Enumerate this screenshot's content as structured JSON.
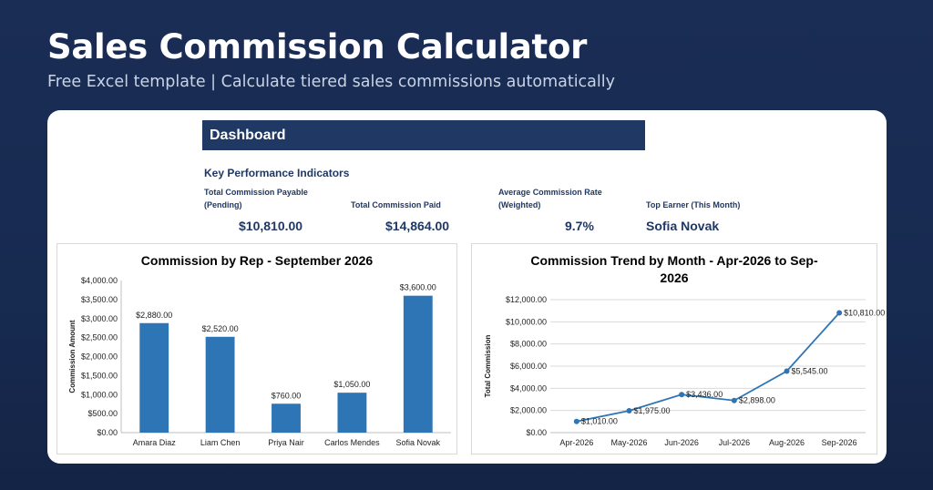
{
  "hero": {
    "title": "Sales Commission Calculator",
    "subtitle": "Free Excel template  |  Calculate tiered sales commissions automatically"
  },
  "dashboard": {
    "header": "Dashboard",
    "kpi_heading": "Key Performance Indicators",
    "kpis": [
      {
        "label_line1": "Total Commission Payable",
        "label_line2": "(Pending)",
        "value": "$10,810.00"
      },
      {
        "label_line1": "Total Commission Paid",
        "label_line2": "",
        "value": "$14,864.00"
      },
      {
        "label_line1": "Average Commission Rate",
        "label_line2": "(Weighted)",
        "value": "9.7%"
      },
      {
        "label_line1": "Top Earner (This Month)",
        "label_line2": "",
        "value": "Sofia Novak"
      }
    ]
  },
  "chart_data": [
    {
      "type": "bar",
      "title": "Commission by Rep - September 2026",
      "ylabel": "Commission Amount",
      "xlabel": "",
      "categories": [
        "Amara Diaz",
        "Liam Chen",
        "Priya Nair",
        "Carlos Mendes",
        "Sofia Novak"
      ],
      "values": [
        2880,
        2520,
        760,
        1050,
        3600
      ],
      "data_labels": [
        "$2,880.00",
        "$2,520.00",
        "$760.00",
        "$1,050.00",
        "$3,600.00"
      ],
      "ylim": [
        0,
        4000
      ],
      "yticks": [
        0,
        500,
        1000,
        1500,
        2000,
        2500,
        3000,
        3500,
        4000
      ],
      "ytick_labels": [
        "$0.00",
        "$500.00",
        "$1,000.00",
        "$1,500.00",
        "$2,000.00",
        "$2,500.00",
        "$3,000.00",
        "$3,500.00",
        "$4,000.00"
      ],
      "color": "#2e75b6",
      "grid": false
    },
    {
      "type": "line",
      "title_line1": "Commission Trend by Month - Apr-2026 to Sep-",
      "title_line2": "2026",
      "ylabel": "Total Commission",
      "xlabel": "",
      "categories": [
        "Apr-2026",
        "May-2026",
        "Jun-2026",
        "Jul-2026",
        "Aug-2026",
        "Sep-2026"
      ],
      "values": [
        1010,
        1975,
        3436,
        2898,
        5545,
        10810
      ],
      "data_labels": [
        "$1,010.00",
        "$1,975.00",
        "$3,436.00",
        "$2,898.00",
        "$5,545.00",
        "$10,810.00"
      ],
      "ylim": [
        0,
        12000
      ],
      "yticks": [
        0,
        2000,
        4000,
        6000,
        8000,
        10000,
        12000
      ],
      "ytick_labels": [
        "$0.00",
        "$2,000.00",
        "$4,000.00",
        "$6,000.00",
        "$8,000.00",
        "$10,000.00",
        "$12,000.00"
      ],
      "color": "#2e75b6",
      "grid": true
    }
  ]
}
